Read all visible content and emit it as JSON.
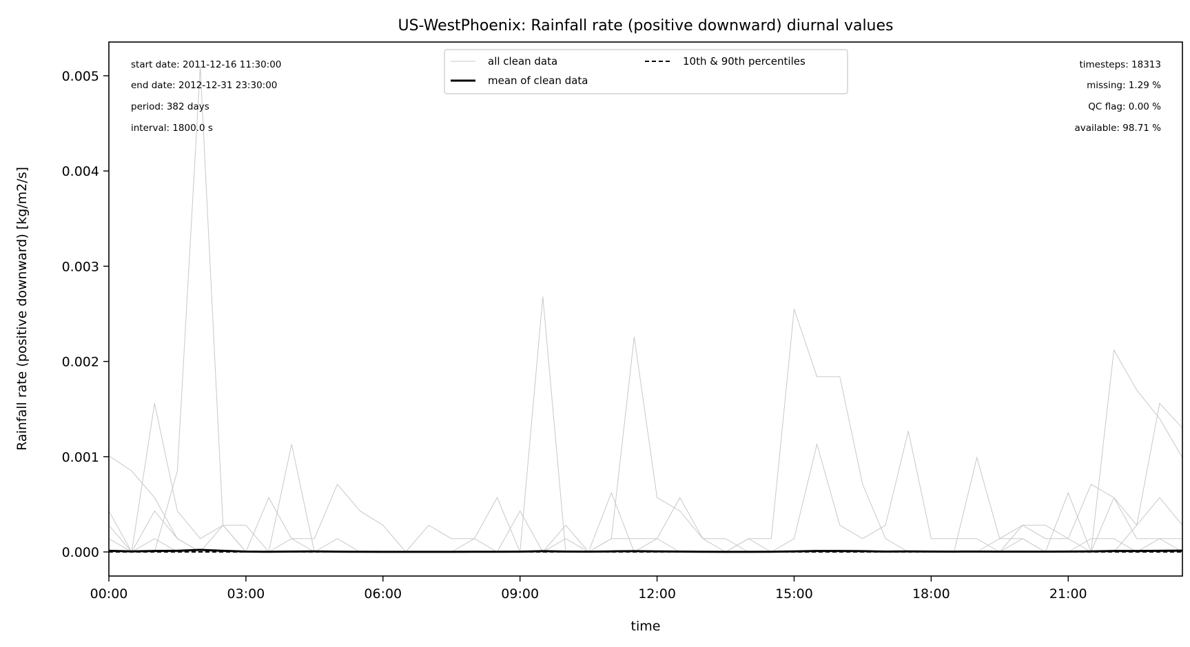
{
  "chart_data": {
    "type": "line",
    "title": "US-WestPhoenix: Rainfall rate (positive downward) diurnal values",
    "xlabel": "time",
    "ylabel": "Rainfall rate (positive downward) [kg/m2/s]",
    "xlim_hours": [
      0,
      23.5
    ],
    "ylim": [
      -0.000253,
      0.005354
    ],
    "x_ticks": [
      {
        "hour": 0,
        "label": "00:00"
      },
      {
        "hour": 3,
        "label": "03:00"
      },
      {
        "hour": 6,
        "label": "06:00"
      },
      {
        "hour": 9,
        "label": "09:00"
      },
      {
        "hour": 12,
        "label": "12:00"
      },
      {
        "hour": 15,
        "label": "15:00"
      },
      {
        "hour": 18,
        "label": "18:00"
      },
      {
        "hour": 21,
        "label": "21:00"
      }
    ],
    "y_ticks": [
      {
        "value": 0,
        "label": "0.000"
      },
      {
        "value": 0.001,
        "label": "0.001"
      },
      {
        "value": 0.002,
        "label": "0.002"
      },
      {
        "value": 0.003,
        "label": "0.003"
      },
      {
        "value": 0.004,
        "label": "0.004"
      },
      {
        "value": 0.005,
        "label": "0.005"
      }
    ],
    "grid": false,
    "legend": {
      "placement": "top-center",
      "entries": [
        "all clean data",
        "10th & 90th percentiles",
        "mean of clean data"
      ]
    },
    "annotations_left": [
      "start date: 2011-12-16 11:30:00",
      "end date: 2012-12-31 23:30:00",
      "period: 382 days",
      "interval: 1800.0 s"
    ],
    "annotations_right": [
      "timesteps: 18313",
      "missing: 1.29 %",
      "QC flag: 0.00 %",
      "available: 98.71 %"
    ],
    "colors": {
      "clean": "#c8c8c8",
      "mean": "#000000",
      "percentile": "#000000"
    },
    "clean_series_note_units": "hour, kg/m2/s; unlisted half-hours are 0",
    "clean_series": [
      [
        [
          0,
          0.00101
        ],
        [
          0.5,
          0.00085
        ],
        [
          1,
          0.00057
        ],
        [
          1.5,
          0.00014
        ]
      ],
      [
        [
          0,
          0.00043
        ],
        [
          0.5,
          0
        ],
        [
          1,
          0.00156
        ],
        [
          1.5,
          0.00043
        ],
        [
          2,
          0.00014
        ],
        [
          2.5,
          0.00028
        ],
        [
          3,
          0.00028
        ]
      ],
      [
        [
          1.5,
          0.00085
        ],
        [
          2,
          0.0051
        ],
        [
          2.5,
          0.00028
        ]
      ],
      [
        [
          0,
          0.00028
        ],
        [
          0.5,
          0
        ],
        [
          1,
          0.00043
        ],
        [
          1.5,
          0.00014
        ]
      ],
      [
        [
          0,
          0.00014
        ],
        [
          1,
          0.00014
        ],
        [
          3.5,
          0.00057
        ],
        [
          4,
          0.00014
        ],
        [
          4.5,
          0.00014
        ],
        [
          5,
          0.00071
        ],
        [
          5.5,
          0.00043
        ],
        [
          6,
          0.00028
        ]
      ],
      [
        [
          4,
          0.00113
        ],
        [
          4.5,
          0
        ],
        [
          5,
          0.00014
        ]
      ],
      [
        [
          2.5,
          0.00028
        ],
        [
          3,
          0
        ],
        [
          4,
          0.00014
        ],
        [
          7,
          0.00028
        ],
        [
          7.5,
          0.00014
        ],
        [
          8,
          0.00014
        ],
        [
          8.5,
          0.00057
        ],
        [
          9,
          0
        ],
        [
          9.5,
          0.00268
        ],
        [
          10,
          0
        ],
        [
          11,
          0.00014
        ],
        [
          11.5,
          0.00226
        ],
        [
          12,
          0.00057
        ],
        [
          12.5,
          0.00043
        ],
        [
          13,
          0.00014
        ],
        [
          13.5,
          0.00014
        ]
      ],
      [
        [
          8,
          0.00014
        ],
        [
          9,
          0.00043
        ],
        [
          9.5,
          0
        ],
        [
          10,
          0.00028
        ],
        [
          11,
          0.00062
        ],
        [
          11.5,
          0
        ],
        [
          12,
          0.00014
        ],
        [
          12.5,
          0.00057
        ],
        [
          13,
          0.00014
        ]
      ],
      [
        [
          10,
          0.00014
        ],
        [
          11,
          0.00014
        ],
        [
          11.5,
          0.00014
        ],
        [
          12,
          0.00014
        ],
        [
          14,
          0.00014
        ],
        [
          14.5,
          0.00014
        ],
        [
          15,
          0.00255
        ],
        [
          15.5,
          0.00184
        ],
        [
          16,
          0.00184
        ],
        [
          16.5,
          0.00071
        ],
        [
          17,
          0.00014
        ]
      ],
      [
        [
          13.5,
          0
        ],
        [
          14,
          0.00014
        ],
        [
          15,
          0.00014
        ],
        [
          15.5,
          0.00113
        ],
        [
          16,
          0.00028
        ],
        [
          16.5,
          0.00014
        ],
        [
          17,
          0.00028
        ],
        [
          17.5,
          0.00127
        ],
        [
          18,
          0.00014
        ],
        [
          18.5,
          0.00014
        ],
        [
          19,
          0.00014
        ]
      ],
      [
        [
          19,
          0.00099
        ],
        [
          19.5,
          0.00014
        ],
        [
          20,
          0.00028
        ],
        [
          20.5,
          0.00028
        ],
        [
          21,
          0.00014
        ],
        [
          21.5,
          0.00071
        ],
        [
          22,
          0.00057
        ],
        [
          22.5,
          0.00014
        ],
        [
          23,
          0.00014
        ],
        [
          23.5,
          0.00014
        ]
      ],
      [
        [
          20,
          0.00014
        ],
        [
          20.5,
          0
        ],
        [
          21,
          0.00062
        ],
        [
          21.5,
          0
        ],
        [
          22,
          0.00212
        ],
        [
          22.5,
          0.0017
        ],
        [
          23,
          0.0014
        ],
        [
          23.5,
          0.00099
        ]
      ],
      [
        [
          21.5,
          0
        ],
        [
          22,
          0.00057
        ],
        [
          22.5,
          0.00028
        ],
        [
          23,
          0.00156
        ],
        [
          23.5,
          0.0013
        ]
      ],
      [
        [
          20,
          0.00028
        ],
        [
          20.5,
          0.00014
        ],
        [
          21,
          0.00014
        ],
        [
          22,
          0
        ],
        [
          22.5,
          0.00028
        ],
        [
          23,
          0.00057
        ],
        [
          23.5,
          0.00028
        ]
      ],
      [
        [
          19.5,
          0.00014
        ],
        [
          20,
          0.00014
        ],
        [
          21,
          0
        ],
        [
          21.5,
          0.00014
        ],
        [
          22,
          0.00014
        ],
        [
          23,
          0.00014
        ]
      ]
    ],
    "mean": [
      1.2e-05,
      5e-06,
      1e-05,
      1.2e-05,
      2.2e-05,
      1.2e-05,
      4e-06,
      2e-06,
      4e-06,
      6e-06,
      3e-06,
      2e-06,
      1e-06,
      1e-06,
      1e-06,
      1e-06,
      2e-06,
      2e-06,
      3e-06,
      8e-06,
      4e-06,
      3e-06,
      6e-06,
      8e-06,
      5e-06,
      4e-06,
      2e-06,
      1e-06,
      1e-06,
      2e-06,
      6e-06,
      1e-05,
      1e-05,
      8e-06,
      4e-06,
      6e-06,
      4e-06,
      3e-06,
      4e-06,
      3e-06,
      3e-06,
      3e-06,
      4e-06,
      5e-06,
      1e-05,
      1e-05,
      1.2e-05,
      1.4e-05
    ],
    "p10": [
      0,
      0,
      0,
      0,
      0,
      0,
      0,
      0,
      0,
      0,
      0,
      0,
      0,
      0,
      0,
      0,
      0,
      0,
      0,
      0,
      0,
      0,
      0,
      0,
      0,
      0,
      0,
      0,
      0,
      0,
      0,
      0,
      0,
      0,
      0,
      0,
      0,
      0,
      0,
      0,
      0,
      0,
      0,
      0,
      0,
      0,
      0,
      0
    ],
    "p90": [
      0,
      0,
      0,
      0,
      0,
      0,
      0,
      0,
      0,
      0,
      0,
      0,
      0,
      0,
      0,
      0,
      0,
      0,
      0,
      0,
      0,
      0,
      0,
      0,
      0,
      0,
      0,
      0,
      0,
      0,
      0,
      0,
      0,
      0,
      0,
      0,
      0,
      0,
      0,
      0,
      0,
      0,
      0,
      0,
      0,
      0,
      0,
      0
    ]
  }
}
